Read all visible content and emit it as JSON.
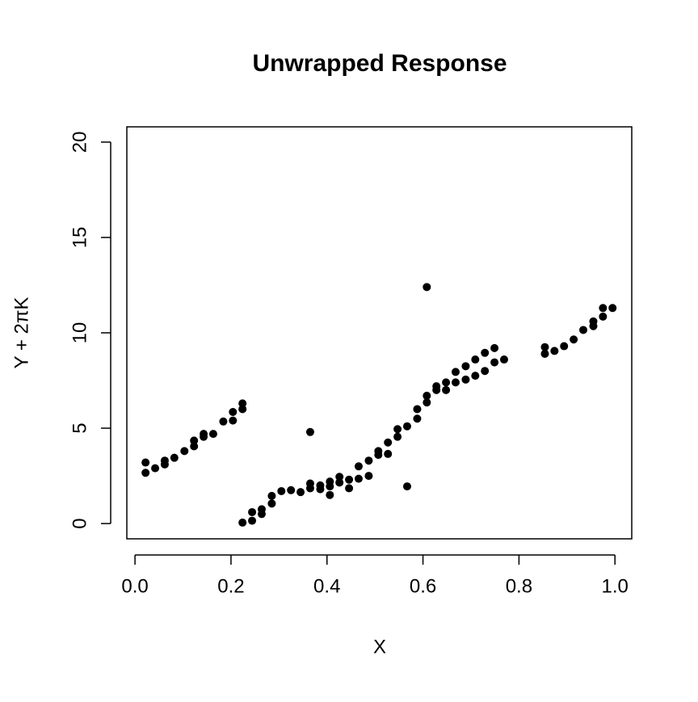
{
  "chart_data": {
    "type": "scatter",
    "title": "Unwrapped Response",
    "x_label": "X",
    "y_label": "Y + 2πK",
    "color": "#000000",
    "x": [
      0.022,
      0.022,
      0.042,
      0.062,
      0.062,
      0.082,
      0.103,
      0.123,
      0.123,
      0.143,
      0.143,
      0.163,
      0.184,
      0.204,
      0.204,
      0.224,
      0.224,
      0.224,
      0.244,
      0.244,
      0.264,
      0.264,
      0.285,
      0.285,
      0.305,
      0.325,
      0.345,
      0.365,
      0.365,
      0.365,
      0.386,
      0.386,
      0.406,
      0.406,
      0.406,
      0.426,
      0.426,
      0.446,
      0.446,
      0.466,
      0.466,
      0.487,
      0.487,
      0.507,
      0.507,
      0.527,
      0.527,
      0.547,
      0.547,
      0.567,
      0.567,
      0.588,
      0.588,
      0.608,
      0.608,
      0.608,
      0.628,
      0.628,
      0.648,
      0.648,
      0.668,
      0.668,
      0.689,
      0.689,
      0.709,
      0.709,
      0.729,
      0.729,
      0.749,
      0.749,
      0.769,
      0.854,
      0.854,
      0.874,
      0.894,
      0.914,
      0.934,
      0.955,
      0.955,
      0.975,
      0.975,
      0.995
    ],
    "y": [
      3.2,
      2.66,
      2.9,
      3.1,
      3.3,
      3.45,
      3.8,
      4.05,
      4.35,
      4.55,
      4.7,
      4.7,
      5.35,
      5.4,
      5.85,
      6.0,
      6.3,
      0.05,
      0.15,
      0.6,
      0.5,
      0.75,
      1.05,
      1.45,
      1.7,
      1.75,
      1.65,
      4.8,
      1.85,
      2.1,
      2.0,
      1.8,
      1.5,
      2.2,
      1.95,
      2.45,
      2.15,
      2.3,
      1.85,
      2.35,
      3.0,
      2.5,
      3.3,
      3.8,
      3.6,
      3.65,
      4.25,
      4.55,
      4.95,
      1.95,
      5.1,
      5.5,
      6.0,
      6.35,
      6.7,
      12.4,
      7.0,
      7.2,
      7.4,
      7.0,
      7.95,
      7.4,
      7.55,
      8.25,
      8.6,
      7.75,
      8.95,
      8.0,
      9.2,
      8.45,
      8.6,
      9.25,
      8.9,
      9.05,
      9.3,
      9.65,
      10.15,
      10.6,
      10.35,
      10.85,
      11.3,
      11.3
    ],
    "xlim": [
      -0.017,
      1.035
    ],
    "ylim": [
      -0.8,
      20.8
    ],
    "xticks": [
      {
        "value": 0,
        "label": "0.0"
      },
      0.2,
      0.4,
      0.6,
      0.8,
      {
        "value": 1,
        "label": "1.0"
      }
    ],
    "yticks": [
      0,
      5,
      10,
      15,
      20
    ]
  }
}
